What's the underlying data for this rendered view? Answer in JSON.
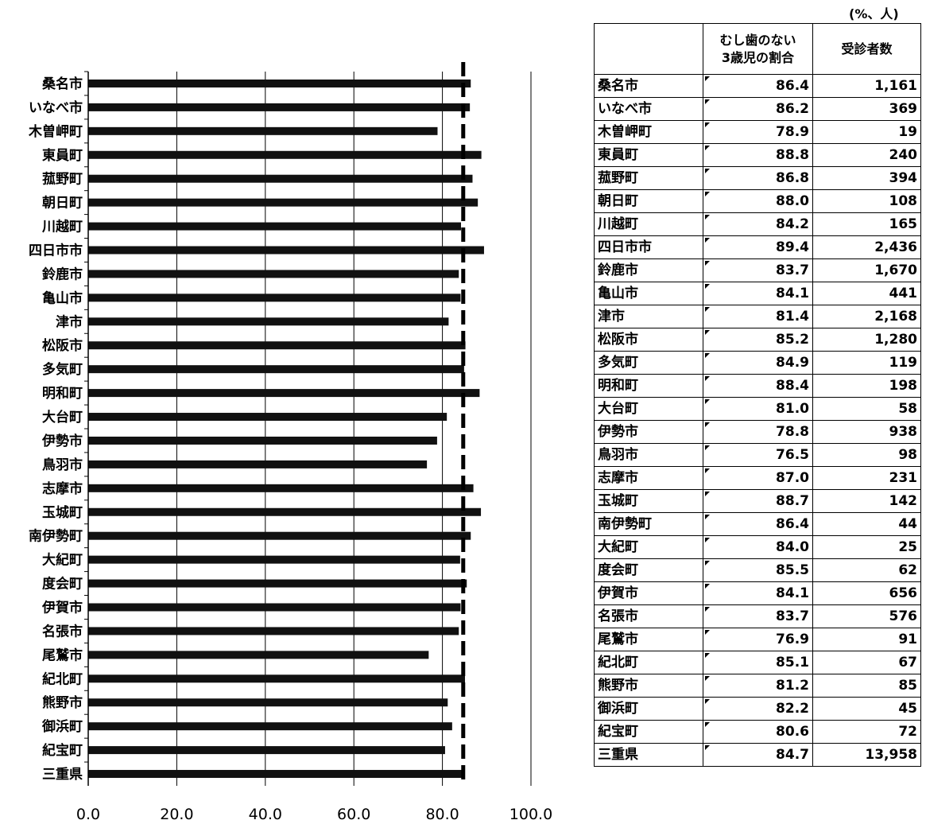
{
  "unit_note": "(%、人)",
  "table": {
    "headers": [
      "",
      "むし歯のない\n3歳児の割合",
      "受診者数"
    ],
    "rows": [
      [
        "桑名市",
        "86.4",
        "1,161"
      ],
      [
        "いなべ市",
        "86.2",
        "369"
      ],
      [
        "木曽岬町",
        "78.9",
        "19"
      ],
      [
        "東員町",
        "88.8",
        "240"
      ],
      [
        "菰野町",
        "86.8",
        "394"
      ],
      [
        "朝日町",
        "88.0",
        "108"
      ],
      [
        "川越町",
        "84.2",
        "165"
      ],
      [
        "四日市市",
        "89.4",
        "2,436"
      ],
      [
        "鈴鹿市",
        "83.7",
        "1,670"
      ],
      [
        "亀山市",
        "84.1",
        "441"
      ],
      [
        "津市",
        "81.4",
        "2,168"
      ],
      [
        "松阪市",
        "85.2",
        "1,280"
      ],
      [
        "多気町",
        "84.9",
        "119"
      ],
      [
        "明和町",
        "88.4",
        "198"
      ],
      [
        "大台町",
        "81.0",
        "58"
      ],
      [
        "伊勢市",
        "78.8",
        "938"
      ],
      [
        "鳥羽市",
        "76.5",
        "98"
      ],
      [
        "志摩市",
        "87.0",
        "231"
      ],
      [
        "玉城町",
        "88.7",
        "142"
      ],
      [
        "南伊勢町",
        "86.4",
        "44"
      ],
      [
        "大紀町",
        "84.0",
        "25"
      ],
      [
        "度会町",
        "85.5",
        "62"
      ],
      [
        "伊賀市",
        "84.1",
        "656"
      ],
      [
        "名張市",
        "83.7",
        "576"
      ],
      [
        "尾鷲市",
        "76.9",
        "91"
      ],
      [
        "紀北町",
        "85.1",
        "67"
      ],
      [
        "熊野市",
        "81.2",
        "85"
      ],
      [
        "御浜町",
        "82.2",
        "45"
      ],
      [
        "紀宝町",
        "80.6",
        "72"
      ],
      [
        "三重県",
        "84.7",
        "13,958"
      ]
    ]
  },
  "chart_data": {
    "type": "bar",
    "orientation": "horizontal",
    "categories": [
      "桑名市",
      "いなべ市",
      "木曽岬町",
      "東員町",
      "菰野町",
      "朝日町",
      "川越町",
      "四日市市",
      "鈴鹿市",
      "亀山市",
      "津市",
      "松阪市",
      "多気町",
      "明和町",
      "大台町",
      "伊勢市",
      "鳥羽市",
      "志摩市",
      "玉城町",
      "南伊勢町",
      "大紀町",
      "度会町",
      "伊賀市",
      "名張市",
      "尾鷲市",
      "紀北町",
      "熊野市",
      "御浜町",
      "紀宝町",
      "三重県"
    ],
    "values": [
      86.4,
      86.2,
      78.9,
      88.8,
      86.8,
      88.0,
      84.2,
      89.4,
      83.7,
      84.1,
      81.4,
      85.2,
      84.9,
      88.4,
      81.0,
      78.8,
      76.5,
      87.0,
      88.7,
      86.4,
      84.0,
      85.5,
      84.1,
      83.7,
      76.9,
      85.1,
      81.2,
      82.2,
      80.6,
      84.7
    ],
    "xlim": [
      0,
      100
    ],
    "xticks": [
      "0.0",
      "20.0",
      "40.0",
      "60.0",
      "80.0",
      "100.0"
    ],
    "reference_line": 84.7,
    "grid": "vertical",
    "bar_color": "#111111",
    "reference_line_color": "#000000"
  }
}
